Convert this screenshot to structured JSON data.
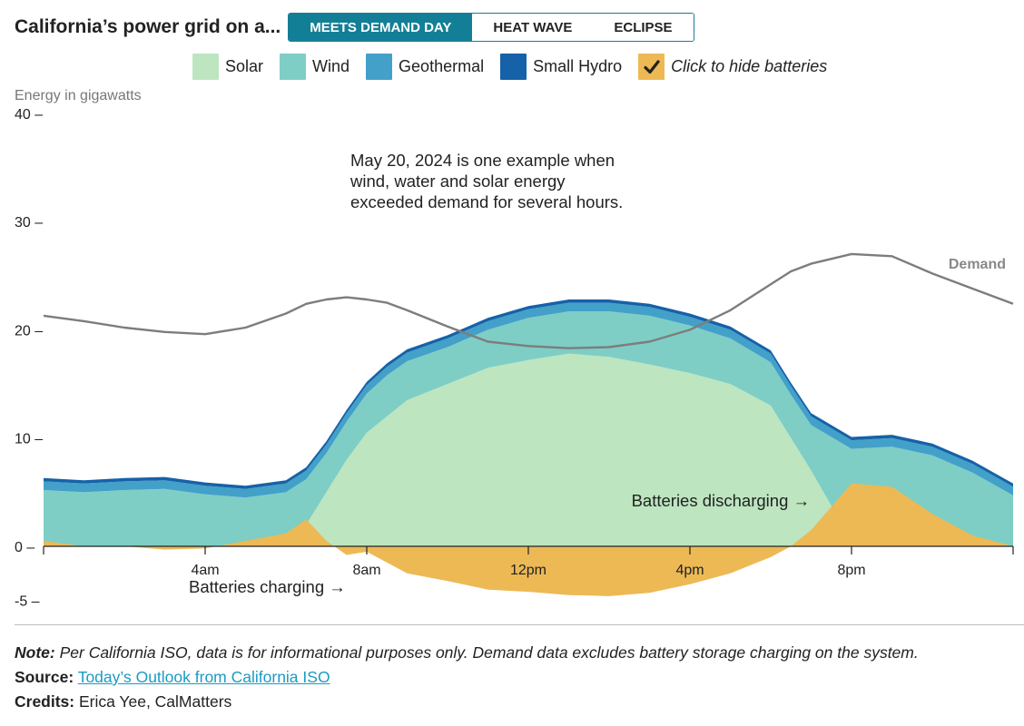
{
  "header": {
    "title": "California’s power grid on a...",
    "tabs": [
      {
        "label": "MEETS DEMAND DAY",
        "active": true
      },
      {
        "label": "HEAT WAVE",
        "active": false
      },
      {
        "label": "ECLIPSE",
        "active": false
      }
    ]
  },
  "legend": {
    "items": [
      {
        "label": "Solar",
        "color": "#bde5c0"
      },
      {
        "label": "Wind",
        "color": "#7ecec5"
      },
      {
        "label": "Geothermal",
        "color": "#43a0c9"
      },
      {
        "label": "Small Hydro",
        "color": "#1562a8"
      }
    ],
    "battery_toggle": {
      "label": "Click to hide batteries",
      "color": "#ecb955",
      "checked": true
    }
  },
  "chart_data": {
    "type": "area",
    "ylabel": "Energy in gigawatts",
    "ylim": [
      -5,
      40
    ],
    "yticks": [
      40,
      30,
      20,
      10,
      0,
      -5
    ],
    "xlim": [
      0,
      24
    ],
    "xticks": [
      {
        "x": 4,
        "label": "4am"
      },
      {
        "x": 8,
        "label": "8am"
      },
      {
        "x": 12,
        "label": "12pm"
      },
      {
        "x": 16,
        "label": "4pm"
      },
      {
        "x": 20,
        "label": "8pm"
      }
    ],
    "x": [
      0,
      1,
      2,
      3,
      4,
      5,
      6,
      6.5,
      7,
      7.5,
      8,
      8.5,
      9,
      10,
      11,
      12,
      13,
      14,
      15,
      16,
      17,
      18,
      18.5,
      19,
      20,
      21,
      22,
      23,
      24
    ],
    "series": [
      {
        "name": "Solar",
        "color": "#bde5c0",
        "values": [
          0,
          0,
          0,
          0,
          0,
          0,
          0.5,
          2,
          5,
          8,
          10.5,
          12,
          13.5,
          15,
          16.5,
          17.2,
          17.8,
          17.5,
          16.8,
          16,
          15,
          13,
          10,
          7,
          0.5,
          0,
          0,
          0,
          0
        ]
      },
      {
        "name": "Wind",
        "color": "#7ecec5",
        "values": [
          5.2,
          5.0,
          5.2,
          5.3,
          4.8,
          4.5,
          4.5,
          4.2,
          3.6,
          3.5,
          3.6,
          3.8,
          3.6,
          3.4,
          3.5,
          3.9,
          3.9,
          4.2,
          4.5,
          4.4,
          4.2,
          4.0,
          4.0,
          4.2,
          8.5,
          9.2,
          8.4,
          6.8,
          4.7
        ]
      },
      {
        "name": "Geothermal",
        "color": "#43a0c9",
        "values": [
          0.8,
          0.8,
          0.8,
          0.8,
          0.8,
          0.8,
          0.8,
          0.8,
          0.8,
          0.8,
          0.8,
          0.8,
          0.8,
          0.8,
          0.8,
          0.8,
          0.8,
          0.8,
          0.8,
          0.8,
          0.8,
          0.8,
          0.8,
          0.8,
          0.8,
          0.8,
          0.8,
          0.8,
          0.8
        ]
      },
      {
        "name": "Small Hydro",
        "color": "#1562a8",
        "values": [
          0.3,
          0.3,
          0.3,
          0.3,
          0.3,
          0.3,
          0.3,
          0.3,
          0.3,
          0.3,
          0.3,
          0.3,
          0.3,
          0.3,
          0.3,
          0.3,
          0.3,
          0.3,
          0.3,
          0.3,
          0.3,
          0.3,
          0.3,
          0.3,
          0.3,
          0.3,
          0.3,
          0.3,
          0.3
        ]
      },
      {
        "name": "Batteries",
        "color": "#ecb955",
        "values": [
          0.5,
          0,
          0,
          -0.3,
          -0.2,
          0.5,
          1.2,
          2.5,
          0.5,
          -0.8,
          -0.5,
          -1.5,
          -2.5,
          -3.2,
          -4.0,
          -4.2,
          -4.5,
          -4.6,
          -4.3,
          -3.5,
          -2.5,
          -1.0,
          0,
          1.5,
          5.8,
          5.5,
          3.0,
          1.0,
          0
        ]
      }
    ],
    "demand": {
      "name": "Demand",
      "values": [
        21.3,
        20.8,
        20.2,
        19.8,
        19.6,
        20.2,
        21.5,
        22.4,
        22.8,
        23.0,
        22.8,
        22.5,
        21.8,
        20.3,
        18.9,
        18.5,
        18.3,
        18.4,
        18.9,
        20.0,
        21.8,
        24.2,
        25.4,
        26.1,
        27.0,
        26.8,
        25.2,
        23.8,
        22.4
      ]
    },
    "annotations": {
      "intro": [
        "May 20, 2024 is one example when",
        "wind, water and solar energy",
        "exceeded demand for several hours."
      ],
      "discharging": "Batteries discharging →",
      "charging": "Batteries charging →",
      "demand_label": "Demand"
    }
  },
  "footer": {
    "note_label": "Note:",
    "note_text": "Per California ISO, data is for informational purposes only. Demand data excludes battery storage charging on the system.",
    "source_label": "Source:",
    "source_link": "Today’s Outlook from California ISO",
    "credits_label": "Credits:",
    "credits_text": "Erica Yee, CalMatters"
  }
}
